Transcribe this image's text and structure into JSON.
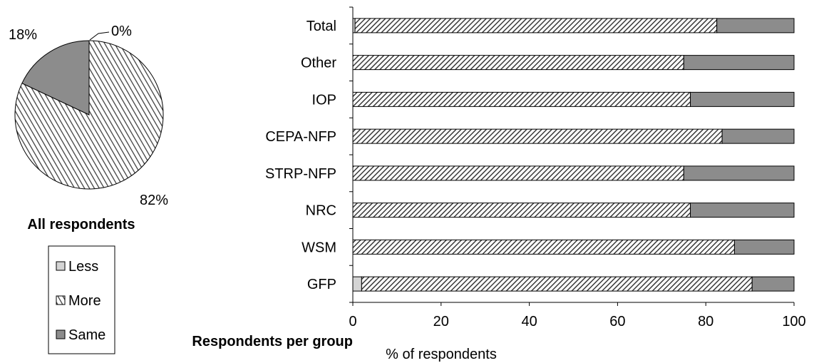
{
  "chart_data": [
    {
      "type": "pie",
      "title": "All respondents",
      "categories": [
        "Less",
        "More",
        "Same"
      ],
      "values": [
        0,
        82,
        18
      ],
      "value_labels": [
        "0%",
        "82%",
        "18%"
      ],
      "colors": {
        "Less": "#d4d4d4",
        "More": "hatched-gray",
        "Same": "#8c8c8c"
      },
      "legend": {
        "position": "bottom",
        "entries": [
          "Less",
          "More",
          "Same"
        ]
      }
    },
    {
      "type": "bar",
      "orientation": "horizontal",
      "stacked": true,
      "title": "Respondents per group",
      "xlabel": "% of respondents",
      "ylabel": "",
      "xlim": [
        0,
        100
      ],
      "x_ticks": [
        "0",
        "20",
        "40",
        "60",
        "80",
        "100"
      ],
      "grid": false,
      "categories": [
        "Total",
        "Other",
        "IOP",
        "CEPA-NFP",
        "STRP-NFP",
        "NRC",
        "WSM",
        "GFP"
      ],
      "series": [
        {
          "name": "Less",
          "values": [
            0.5,
            0,
            0,
            0,
            0,
            0,
            0,
            2
          ]
        },
        {
          "name": "More",
          "values": [
            82,
            75,
            76.5,
            83.7,
            75,
            76.5,
            86.5,
            88.5
          ]
        },
        {
          "name": "Same",
          "values": [
            17.5,
            25,
            23.5,
            16.3,
            25,
            23.5,
            13.5,
            9.5
          ]
        }
      ]
    }
  ]
}
